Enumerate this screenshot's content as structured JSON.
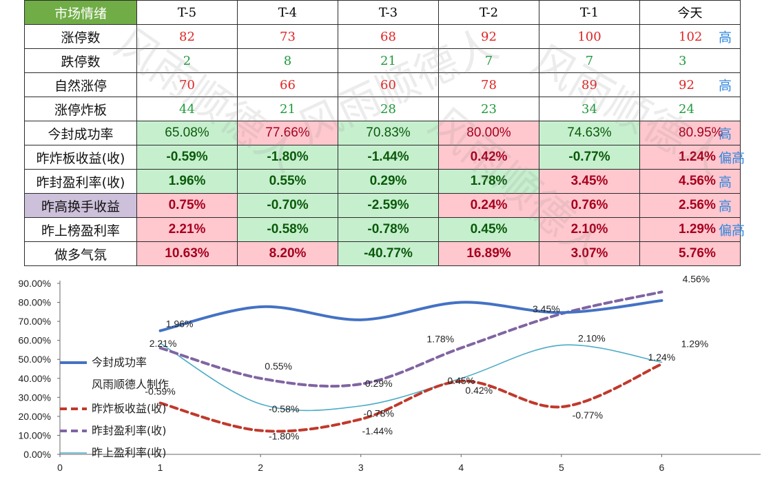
{
  "table": {
    "header": [
      "市场情绪",
      "T-5",
      "T-4",
      "T-3",
      "T-2",
      "T-1",
      "今天"
    ],
    "rows": [
      {
        "label": "涨停数",
        "values": [
          "82",
          "73",
          "68",
          "92",
          "100",
          "102"
        ],
        "tag": "高",
        "kind": "count",
        "colors": [
          "red",
          "red",
          "red",
          "red",
          "red",
          "red"
        ]
      },
      {
        "label": "跌停数",
        "values": [
          "2",
          "8",
          "21",
          "7",
          "7",
          "3"
        ],
        "tag": "",
        "kind": "count",
        "colors": [
          "green",
          "green",
          "green",
          "green",
          "green",
          "green"
        ]
      },
      {
        "label": "自然涨停",
        "values": [
          "70",
          "66",
          "60",
          "78",
          "89",
          "92"
        ],
        "tag": "高",
        "kind": "count",
        "colors": [
          "red",
          "red",
          "red",
          "red",
          "red",
          "red"
        ]
      },
      {
        "label": "涨停炸板",
        "values": [
          "44",
          "21",
          "28",
          "23",
          "34",
          "24"
        ],
        "tag": "",
        "kind": "count",
        "colors": [
          "green",
          "green",
          "green",
          "green",
          "green",
          "green"
        ]
      },
      {
        "label": "今封成功率",
        "values": [
          "65.08%",
          "77.66%",
          "70.83%",
          "80.00%",
          "74.63%",
          "80.95%"
        ],
        "tag": "高",
        "kind": "pct",
        "bgs": [
          "g",
          "r",
          "g",
          "r",
          "g",
          "r"
        ]
      },
      {
        "label": "昨炸板收益(收)",
        "values": [
          "-0.59%",
          "-1.80%",
          "-1.44%",
          "0.42%",
          "-0.77%",
          "1.24%"
        ],
        "tag": "偏高",
        "kind": "bold",
        "bgs": [
          "g",
          "g",
          "g",
          "r",
          "g",
          "r"
        ]
      },
      {
        "label": "昨封盈利率(收)",
        "values": [
          "1.96%",
          "0.55%",
          "0.29%",
          "1.78%",
          "3.45%",
          "4.56%"
        ],
        "tag": "高",
        "kind": "bold",
        "bgs": [
          "g",
          "g",
          "g",
          "g",
          "r",
          "r"
        ]
      },
      {
        "label": "昨高换手收益",
        "values": [
          "0.75%",
          "-0.70%",
          "-2.59%",
          "0.24%",
          "0.76%",
          "2.56%"
        ],
        "tag": "高",
        "kind": "bold",
        "bgs": [
          "r",
          "g",
          "g",
          "r",
          "r",
          "r"
        ],
        "label_bg": "purple"
      },
      {
        "label": "昨上榜盈利率",
        "values": [
          "2.21%",
          "-0.58%",
          "-0.78%",
          "0.45%",
          "2.10%",
          "1.29%"
        ],
        "tag": "偏高",
        "kind": "bold",
        "bgs": [
          "r",
          "g",
          "g",
          "g",
          "r",
          "r"
        ]
      },
      {
        "label": "做多气氛",
        "values": [
          "10.63%",
          "8.20%",
          "-40.77%",
          "16.89%",
          "3.07%",
          "5.76%"
        ],
        "tag": "",
        "kind": "bold",
        "bgs": [
          "r",
          "r",
          "g",
          "r",
          "r",
          "r"
        ]
      }
    ]
  },
  "watermark": "风雨顺德人",
  "chart_data": {
    "type": "line",
    "x": [
      1,
      2,
      3,
      4,
      5,
      6
    ],
    "xticks": [
      "0",
      "1",
      "2",
      "3",
      "4",
      "5",
      "6"
    ],
    "xlim": [
      0,
      7
    ],
    "ylim": [
      0,
      90
    ],
    "yticks": [
      "0.00%",
      "10.00%",
      "20.00%",
      "30.00%",
      "40.00%",
      "50.00%",
      "60.00%",
      "70.00%",
      "80.00%",
      "90.00%"
    ],
    "series": [
      {
        "name": "今封成功率",
        "values": [
          65.08,
          77.66,
          70.83,
          80.0,
          74.63,
          80.95
        ],
        "color": "#4472c4",
        "style": "solid-thick",
        "labels": []
      },
      {
        "name": "昨炸板收益(收)",
        "values": [
          27,
          12.5,
          18.5,
          38.5,
          25,
          47.5
        ],
        "color": "#c0392b",
        "style": "dashed",
        "labels": [
          "-0.59%",
          "-1.80%",
          "-1.44%",
          "0.42%",
          "-0.77%",
          "1.24%"
        ]
      },
      {
        "name": "昨封盈利率(收)",
        "values": [
          56,
          40,
          37,
          56,
          74,
          85.5
        ],
        "color": "#8064a2",
        "style": "dashed",
        "labels": [
          "1.96%",
          "0.55%",
          "0.29%",
          "1.78%",
          "3.45%",
          "4.56%"
        ]
      },
      {
        "name": "昨上盈利率(收)",
        "values": [
          58.5,
          26.5,
          25.5,
          40,
          57.5,
          48.5
        ],
        "color": "#4bacc6",
        "style": "solid-thin",
        "labels": [
          "2.21%",
          "-0.58%",
          "-0.78%",
          "0.45%",
          "2.10%",
          "1.29%"
        ]
      }
    ],
    "legend_extra": "风雨顺德人制作",
    "legend": "left"
  }
}
